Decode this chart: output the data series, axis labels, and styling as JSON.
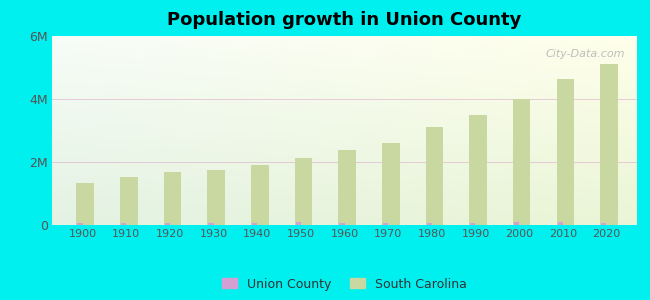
{
  "title": "Population growth in Union County",
  "background_color": "#00EFEF",
  "years": [
    1900,
    1910,
    1920,
    1930,
    1940,
    1950,
    1960,
    1970,
    1980,
    1990,
    2000,
    2010,
    2020
  ],
  "sc_population": [
    1340316,
    1515400,
    1683724,
    1738765,
    1899804,
    2117027,
    2382594,
    2590516,
    3121820,
    3486703,
    4012012,
    4625364,
    5118425
  ],
  "union_population": [
    56961,
    58461,
    67999,
    68183,
    73924,
    79604,
    69685,
    64546,
    72959,
    70618,
    89105,
    85006,
    66000
  ],
  "sc_color": "#c8d8a0",
  "union_color": "#d4a0d4",
  "ylim": [
    0,
    6000000
  ],
  "yticks": [
    0,
    2000000,
    4000000,
    6000000
  ],
  "ytick_labels": [
    "0",
    "2M",
    "4M",
    "6M"
  ],
  "legend_union": "Union County",
  "legend_sc": "South Carolina",
  "watermark": "City-Data.com",
  "bar_width": 4.0,
  "bar_gap": 1.2,
  "xlim_left": 1893,
  "xlim_right": 2027,
  "grid_color": "#ddbbcc",
  "grid_alpha": 0.5
}
